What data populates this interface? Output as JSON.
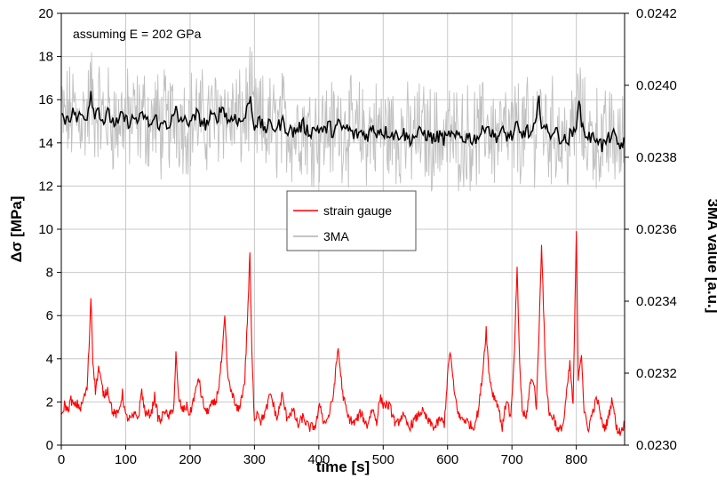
{
  "chart_data": {
    "type": "line",
    "annotation": "assuming E = 202 GPa",
    "xlabel": "time [s]",
    "ylabel": "Δσ [MPa]",
    "y2label": "3MA value [a.u.]",
    "xlim": [
      0,
      875
    ],
    "ylim": [
      0,
      20
    ],
    "y2lim": [
      0.023,
      0.0242
    ],
    "x_ticks": [
      "0",
      "100",
      "200",
      "300",
      "400",
      "500",
      "600",
      "700",
      "800"
    ],
    "y_ticks": [
      "0",
      "2",
      "4",
      "6",
      "8",
      "10",
      "12",
      "14",
      "16",
      "18",
      "20"
    ],
    "y2_ticks": [
      "0.0230",
      "0.0232",
      "0.0234",
      "0.0236",
      "0.0238",
      "0.0240",
      "0.0242"
    ],
    "grid": true,
    "legend_position": "center",
    "colors": {
      "strain": "#ff0000",
      "ma_raw": "#c0c0c0",
      "ma_smooth": "#000000"
    },
    "series": [
      {
        "name": "strain gauge",
        "axis": "left",
        "x": [
          0,
          5,
          10,
          15,
          20,
          25,
          30,
          35,
          40,
          43,
          46,
          49,
          53,
          58,
          62,
          66,
          72,
          80,
          88,
          95,
          100,
          108,
          115,
          120,
          125,
          128,
          132,
          140,
          145,
          150,
          155,
          160,
          165,
          170,
          175,
          178,
          182,
          188,
          195,
          200,
          205,
          210,
          213,
          218,
          225,
          232,
          240,
          245,
          250,
          254,
          258,
          262,
          266,
          270,
          275,
          280,
          285,
          290,
          293,
          296,
          300,
          305,
          310,
          318,
          325,
          335,
          343,
          350,
          360,
          368,
          375,
          385,
          395,
          402,
          408,
          415,
          422,
          430,
          437,
          445,
          455,
          465,
          475,
          483,
          490,
          495,
          500,
          510,
          520,
          530,
          540,
          550,
          560,
          570,
          580,
          588,
          595,
          600,
          604,
          610,
          618,
          625,
          630,
          640,
          648,
          655,
          660,
          664,
          670,
          678,
          685,
          692,
          698,
          703,
          708,
          712,
          716,
          722,
          728,
          733,
          738,
          742,
          746,
          752,
          758,
          765,
          772,
          780,
          785,
          790,
          795,
          800,
          803,
          808,
          812,
          818,
          825,
          832,
          840,
          845,
          850,
          856,
          862,
          868,
          875
        ],
        "values": [
          1.2,
          1.9,
          1.6,
          2.1,
          1.8,
          1.9,
          1.7,
          2.2,
          2.6,
          4.5,
          6.9,
          4.0,
          2.5,
          3.6,
          2.9,
          2.3,
          2.6,
          1.5,
          1.4,
          2.4,
          1.3,
          1.2,
          1.4,
          1.3,
          2.6,
          1.8,
          1.4,
          1.5,
          2.3,
          1.3,
          1.1,
          1.7,
          1.3,
          1.4,
          1.9,
          4.2,
          2.2,
          1.6,
          1.8,
          1.4,
          2.1,
          2.6,
          3.2,
          2.2,
          1.5,
          1.8,
          2.0,
          2.8,
          4.2,
          5.9,
          3.4,
          2.6,
          2.4,
          1.8,
          1.6,
          2.2,
          3.0,
          6.5,
          8.9,
          4.2,
          1.2,
          1.6,
          1.1,
          1.6,
          2.4,
          1.2,
          2.3,
          1.3,
          1.6,
          0.9,
          1.3,
          0.8,
          0.9,
          1.9,
          1.0,
          1.3,
          2.2,
          4.5,
          2.4,
          1.3,
          1.0,
          1.5,
          0.9,
          1.7,
          1.1,
          2.2,
          1.9,
          1.8,
          0.9,
          1.4,
          0.8,
          1.2,
          1.6,
          1.1,
          0.8,
          1.2,
          1.0,
          3.2,
          4.4,
          2.5,
          1.3,
          1.2,
          1.1,
          0.8,
          1.6,
          3.5,
          5.4,
          3.4,
          2.4,
          1.9,
          0.8,
          2.2,
          1.2,
          3.6,
          8.1,
          3.8,
          1.6,
          1.2,
          2.8,
          3.1,
          1.8,
          5.2,
          9.4,
          3.5,
          1.4,
          1.3,
          0.6,
          1.0,
          2.4,
          3.8,
          1.8,
          9.8,
          3.2,
          4.3,
          1.6,
          0.7,
          1.5,
          2.2,
          1.0,
          0.8,
          1.3,
          2.2,
          0.8,
          0.6,
          1.0
        ]
      },
      {
        "name": "3MA",
        "axis": "right",
        "x": [
          0,
          5,
          10,
          15,
          20,
          25,
          30,
          35,
          40,
          43,
          46,
          49,
          53,
          58,
          62,
          66,
          72,
          80,
          88,
          95,
          100,
          108,
          115,
          120,
          125,
          128,
          132,
          140,
          145,
          150,
          155,
          160,
          165,
          170,
          175,
          178,
          182,
          188,
          195,
          200,
          205,
          210,
          213,
          218,
          225,
          232,
          240,
          245,
          250,
          254,
          258,
          262,
          266,
          270,
          275,
          280,
          285,
          290,
          293,
          296,
          300,
          305,
          310,
          318,
          325,
          335,
          343,
          350,
          360,
          368,
          375,
          385,
          395,
          402,
          408,
          415,
          422,
          430,
          437,
          445,
          455,
          465,
          475,
          483,
          490,
          495,
          500,
          510,
          520,
          530,
          540,
          550,
          560,
          570,
          580,
          588,
          595,
          600,
          604,
          610,
          618,
          625,
          630,
          640,
          648,
          655,
          660,
          664,
          670,
          678,
          685,
          692,
          698,
          703,
          708,
          712,
          716,
          722,
          728,
          733,
          738,
          742,
          746,
          752,
          758,
          765,
          772,
          780,
          785,
          790,
          795,
          800,
          803,
          808,
          812,
          818,
          825,
          832,
          840,
          845,
          850,
          856,
          862,
          868,
          875
        ],
        "values": [
          0.02392,
          0.0239,
          0.02392,
          0.02391,
          0.02393,
          0.0239,
          0.02392,
          0.02391,
          0.02392,
          0.02394,
          0.02399,
          0.02394,
          0.02392,
          0.02394,
          0.02391,
          0.0239,
          0.02392,
          0.0239,
          0.02389,
          0.02392,
          0.0239,
          0.0239,
          0.02391,
          0.0239,
          0.02391,
          0.02392,
          0.0239,
          0.02389,
          0.02391,
          0.0239,
          0.02388,
          0.0239,
          0.02389,
          0.0239,
          0.02391,
          0.02393,
          0.0239,
          0.02391,
          0.02389,
          0.02391,
          0.0239,
          0.02392,
          0.02391,
          0.0239,
          0.02389,
          0.02391,
          0.02391,
          0.02392,
          0.02394,
          0.02393,
          0.0239,
          0.02391,
          0.0239,
          0.02392,
          0.0239,
          0.0239,
          0.02391,
          0.02394,
          0.02398,
          0.02393,
          0.02389,
          0.0239,
          0.02389,
          0.02388,
          0.02389,
          0.02388,
          0.0239,
          0.02388,
          0.02387,
          0.02388,
          0.02389,
          0.02387,
          0.02388,
          0.02388,
          0.02387,
          0.02389,
          0.02387,
          0.02389,
          0.02388,
          0.02388,
          0.02386,
          0.02387,
          0.02386,
          0.02388,
          0.02387,
          0.02388,
          0.02387,
          0.02387,
          0.02386,
          0.02387,
          0.02385,
          0.02386,
          0.02387,
          0.02386,
          0.02385,
          0.02386,
          0.02385,
          0.02385,
          0.02387,
          0.02385,
          0.02386,
          0.02385,
          0.02386,
          0.02385,
          0.02386,
          0.02387,
          0.0239,
          0.02388,
          0.02386,
          0.02386,
          0.02387,
          0.02386,
          0.02386,
          0.02386,
          0.02389,
          0.02386,
          0.02386,
          0.02388,
          0.02386,
          0.02387,
          0.0239,
          0.02396,
          0.0239,
          0.02388,
          0.02386,
          0.02388,
          0.02386,
          0.02385,
          0.02384,
          0.02386,
          0.02386,
          0.0239,
          0.02396,
          0.0239,
          0.02387,
          0.02386,
          0.02385,
          0.02386,
          0.02383,
          0.02384,
          0.02385,
          0.02387,
          0.02384,
          0.02383,
          0.02385
        ]
      }
    ]
  }
}
